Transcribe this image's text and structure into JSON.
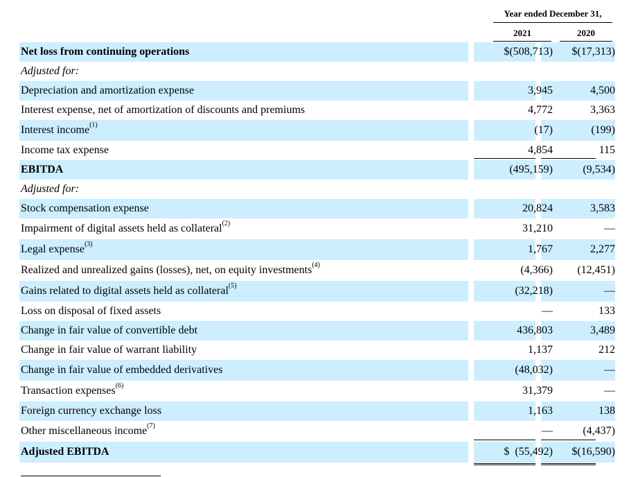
{
  "header": {
    "period": "Year ended December 31,",
    "year1": "2021",
    "year2": "2020"
  },
  "rows": [
    {
      "label": "Net loss from continuing operations",
      "style": "bold",
      "shaded": true,
      "v1": "$(508,713)",
      "v2": "$(17,313)"
    },
    {
      "label": "Adjusted for:",
      "style": "italic",
      "shaded": false,
      "v1": "",
      "v2": ""
    },
    {
      "label": "Depreciation and amortization expense",
      "style": "normal",
      "shaded": true,
      "v1": "3,945",
      "v2": "4,500"
    },
    {
      "label": "Interest expense, net of amortization of discounts and premiums",
      "style": "normal",
      "shaded": false,
      "v1": "4,772",
      "v2": "3,363"
    },
    {
      "label": "Interest income",
      "footnote": "(1)",
      "style": "normal",
      "shaded": true,
      "v1": "(17)",
      "v2": "(199)"
    },
    {
      "label": "Income tax expense",
      "style": "normal",
      "shaded": false,
      "v1": "4,854",
      "v2": "115",
      "underline": true
    },
    {
      "label": "EBITDA",
      "style": "bold",
      "shaded": true,
      "v1": "(495,159)",
      "v2": "(9,534)"
    },
    {
      "label": "Adjusted for:",
      "style": "italic",
      "shaded": false,
      "v1": "",
      "v2": ""
    },
    {
      "label": "Stock compensation expense",
      "style": "normal",
      "shaded": true,
      "v1": "20,824",
      "v2": "3,583"
    },
    {
      "label": "Impairment of digital assets held as collateral",
      "footnote": "(2)",
      "style": "normal",
      "shaded": false,
      "v1": "31,210",
      "v2": "—"
    },
    {
      "label": "Legal expense",
      "footnote": "(3)",
      "style": "normal",
      "shaded": true,
      "v1": "1,767",
      "v2": "2,277"
    },
    {
      "label": "Realized and unrealized gains (losses), net, on equity investments",
      "footnote": "(4)",
      "style": "normal",
      "shaded": false,
      "v1": "(4,366)",
      "v2": "(12,451)"
    },
    {
      "label": "Gains related to digital assets held as collateral",
      "footnote": "(5)",
      "style": "normal",
      "shaded": true,
      "v1": "(32,218)",
      "v2": "—"
    },
    {
      "label": "Loss on disposal of fixed assets",
      "style": "normal",
      "shaded": false,
      "v1": "—",
      "v2": "133"
    },
    {
      "label": "Change in fair value of convertible debt",
      "style": "normal",
      "shaded": true,
      "v1": "436,803",
      "v2": "3,489"
    },
    {
      "label": "Change in fair value of warrant liability",
      "style": "normal",
      "shaded": false,
      "v1": "1,137",
      "v2": "212"
    },
    {
      "label": "Change in fair value of embedded derivatives",
      "style": "normal",
      "shaded": true,
      "v1": "(48,032)",
      "v2": "—"
    },
    {
      "label": "Transaction expenses",
      "footnote": "(6)",
      "style": "normal",
      "shaded": false,
      "v1": "31,379",
      "v2": "—"
    },
    {
      "label": "Foreign currency exchange loss",
      "style": "normal",
      "shaded": true,
      "v1": "1,163",
      "v2": "138"
    },
    {
      "label": "Other miscellaneous income",
      "footnote": "(7)",
      "style": "normal",
      "shaded": false,
      "v1": "—",
      "v2": "(4,437)",
      "underline": true
    },
    {
      "label": "Adjusted EBITDA",
      "style": "bold",
      "shaded": true,
      "v1": "$  (55,492)",
      "v2": "$(16,590)",
      "double": true
    }
  ]
}
